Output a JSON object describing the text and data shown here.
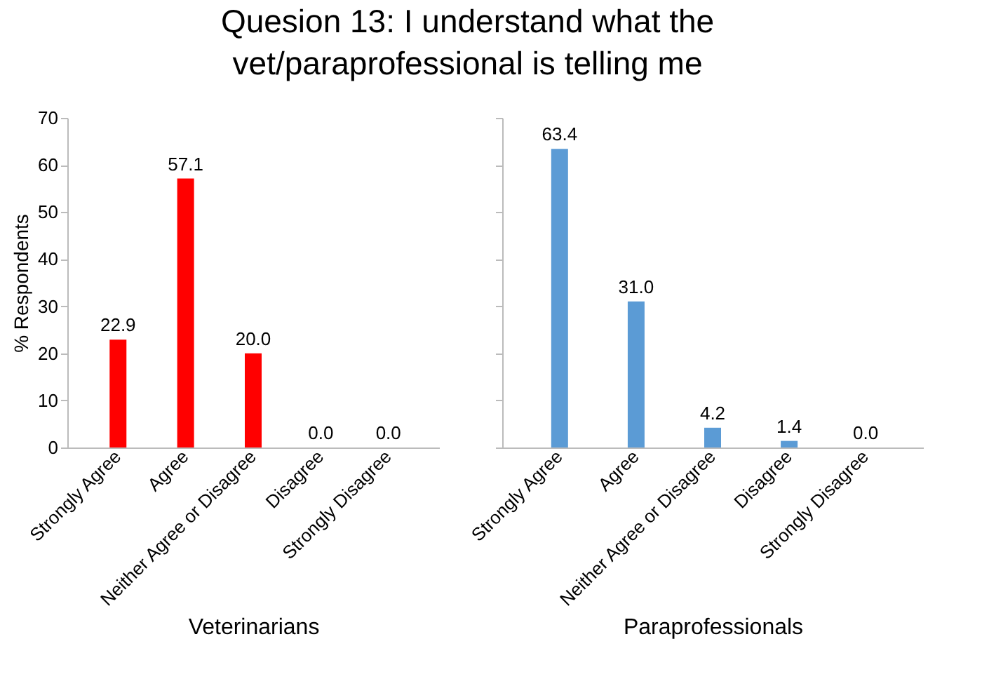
{
  "chart_data": [
    {
      "type": "bar",
      "title": "Quesion 13: I understand what the vet/paraprofessional  is telling me",
      "xlabel": "Veterinarians",
      "ylabel": "% Respondents",
      "categories": [
        "Strongly Agree",
        "Agree",
        "Neither Agree or Disagree",
        "Disagree",
        "Strongly Disagree"
      ],
      "series": [
        {
          "color": "#ff0000",
          "values": [
            22.9,
            57.1,
            20.0,
            0,
            0
          ],
          "value_labels": [
            "22.9",
            "57.1",
            "20.0",
            "0.0",
            "0.0"
          ]
        }
      ],
      "ylim": [
        0,
        70
      ],
      "yticks": [
        0,
        10,
        20,
        30,
        40,
        50,
        60,
        70
      ]
    },
    {
      "type": "bar",
      "xlabel": "Paraprofessionals",
      "categories": [
        "Strongly Agree",
        "Agree",
        "Neither Agree or Disagree",
        "Disagree",
        "Strongly Disagree"
      ],
      "series": [
        {
          "color": "#5b9bd5",
          "values": [
            63.4,
            31.0,
            4.2,
            1.4,
            0
          ],
          "value_labels": [
            "63.4",
            "31.0",
            "4.2",
            "1.4",
            "0.0"
          ]
        }
      ],
      "ylim": [
        0,
        70
      ],
      "yticks": [
        0,
        10,
        20,
        30,
        40,
        50,
        60,
        70
      ],
      "tick_labels": "x"
    }
  ]
}
